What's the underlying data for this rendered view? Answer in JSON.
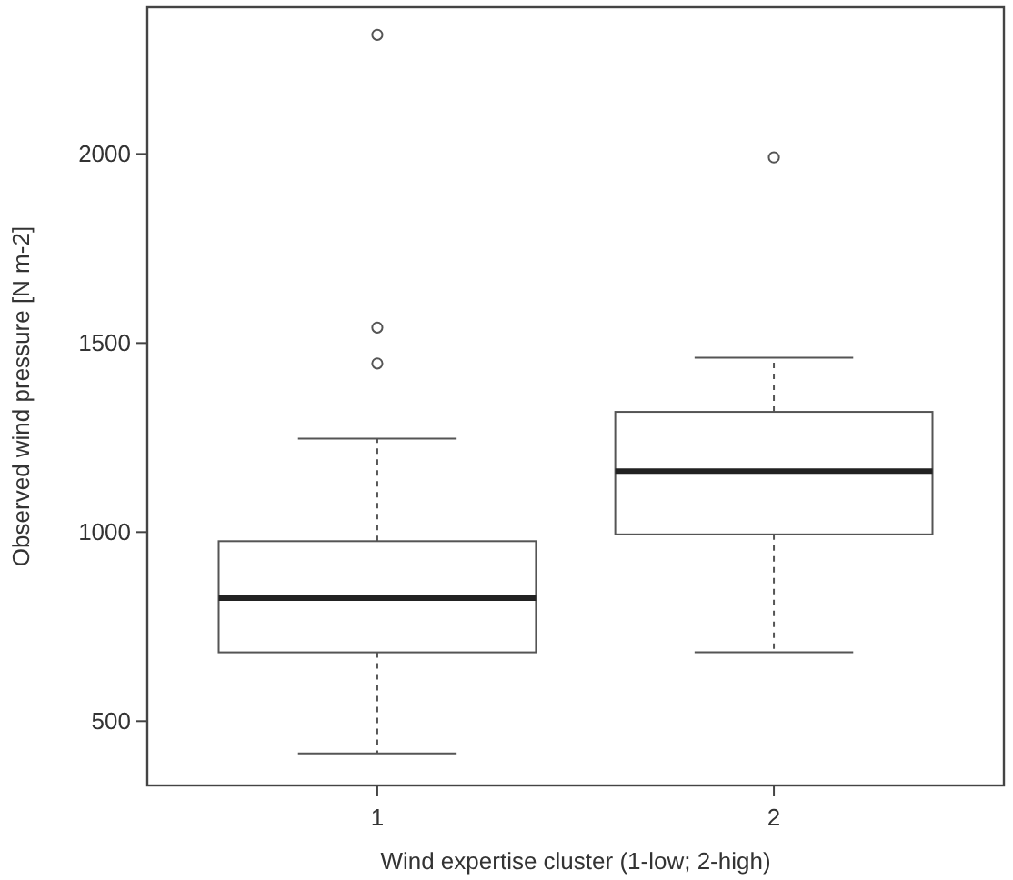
{
  "chart_data": {
    "type": "box",
    "xlabel": "Wind expertise cluster (1-low; 2-high)",
    "ylabel": "Observed wind pressure [N m-2]",
    "categories": [
      "1",
      "2"
    ],
    "boxes": [
      {
        "low": 415,
        "q1": 682,
        "median": 825,
        "q3": 976,
        "high": 1247,
        "outliers": [
          1446,
          1541,
          2315
        ]
      },
      {
        "low": 682,
        "q1": 994,
        "median": 1161,
        "q3": 1318,
        "high": 1461,
        "outliers": [
          1991
        ]
      }
    ],
    "ylim": [
      330,
      2388
    ],
    "yticks": [
      500,
      1000,
      1500,
      2000
    ],
    "grid": false
  }
}
